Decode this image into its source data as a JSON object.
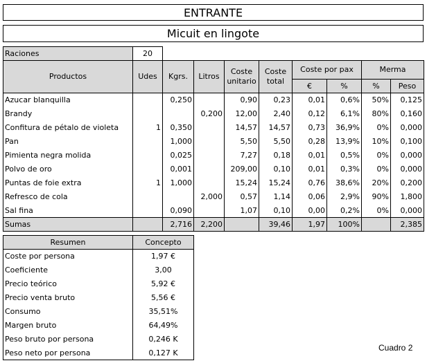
{
  "title": "ENTRANTE",
  "dish": "Micuit en lingote",
  "raciones": {
    "label": "Raciones",
    "value": "20"
  },
  "headers": {
    "productos": "Productos",
    "udes": "Udes",
    "kgrs": "Kgrs.",
    "litros": "Litros",
    "coste_unitario": [
      "Coste",
      "unitario"
    ],
    "coste_total": [
      "Coste",
      "total"
    ],
    "coste_por_pax": "Coste por pax",
    "merma": "Merma",
    "euro": "€",
    "pct": "%",
    "merma_pct": "%",
    "peso": "Peso"
  },
  "rows": [
    {
      "producto": "Azucar blanquilla",
      "udes": "",
      "kgrs": "0,250",
      "litros": "",
      "coste_unitario": "0,90",
      "coste_total": "0,23",
      "pax_euro": "0,01",
      "pax_pct": "0,6%",
      "merma_pct": "50%",
      "peso": "0,125"
    },
    {
      "producto": "Brandy",
      "udes": "",
      "kgrs": "",
      "litros": "0,200",
      "coste_unitario": "12,00",
      "coste_total": "2,40",
      "pax_euro": "0,12",
      "pax_pct": "6,1%",
      "merma_pct": "80%",
      "peso": "0,160"
    },
    {
      "producto": "Confitura de pétalo de violeta",
      "udes": "1",
      "kgrs": "0,350",
      "litros": "",
      "coste_unitario": "14,57",
      "coste_total": "14,57",
      "pax_euro": "0,73",
      "pax_pct": "36,9%",
      "merma_pct": "0%",
      "peso": "0,000"
    },
    {
      "producto": "Pan",
      "udes": "",
      "kgrs": "1,000",
      "litros": "",
      "coste_unitario": "5,50",
      "coste_total": "5,50",
      "pax_euro": "0,28",
      "pax_pct": "13,9%",
      "merma_pct": "10%",
      "peso": "0,100"
    },
    {
      "producto": "Pimienta negra molida",
      "udes": "",
      "kgrs": "0,025",
      "litros": "",
      "coste_unitario": "7,27",
      "coste_total": "0,18",
      "pax_euro": "0,01",
      "pax_pct": "0,5%",
      "merma_pct": "0%",
      "peso": "0,000"
    },
    {
      "producto": "Polvo de oro",
      "udes": "",
      "kgrs": "0,001",
      "litros": "",
      "coste_unitario": "209,00",
      "coste_total": "0,10",
      "pax_euro": "0,01",
      "pax_pct": "0,3%",
      "merma_pct": "0%",
      "peso": "0,000"
    },
    {
      "producto": "Puntas de foie extra",
      "udes": "1",
      "kgrs": "1,000",
      "litros": "",
      "coste_unitario": "15,24",
      "coste_total": "15,24",
      "pax_euro": "0,76",
      "pax_pct": "38,6%",
      "merma_pct": "20%",
      "peso": "0,200"
    },
    {
      "producto": "Refresco de cola",
      "udes": "",
      "kgrs": "",
      "litros": "2,000",
      "coste_unitario": "0,57",
      "coste_total": "1,14",
      "pax_euro": "0,06",
      "pax_pct": "2,9%",
      "merma_pct": "90%",
      "peso": "1,800"
    },
    {
      "producto": "Sal fina",
      "udes": "",
      "kgrs": "0,090",
      "litros": "",
      "coste_unitario": "1,07",
      "coste_total": "0,10",
      "pax_euro": "0,00",
      "pax_pct": "0,2%",
      "merma_pct": "0%",
      "peso": "0,000"
    }
  ],
  "sumas": {
    "label": "Sumas",
    "udes": "",
    "kgrs": "2,716",
    "litros": "2,200",
    "coste_unitario": "",
    "coste_total": "39,46",
    "pax_euro": "1,97",
    "pax_pct": "100%",
    "merma_pct": "",
    "peso": "2,385"
  },
  "resumen": {
    "header_left": "Resumen",
    "header_right": "Concepto",
    "rows": [
      {
        "label": "Coste por persona",
        "value": "1,97 €"
      },
      {
        "label": "Coeficiente",
        "value": "3,00"
      },
      {
        "label": "Precio teórico",
        "value": "5,92 €"
      },
      {
        "label": "Precio venta bruto",
        "value": "5,56 €"
      },
      {
        "label": "Consumo",
        "value": "35,51%"
      },
      {
        "label": "Margen bruto",
        "value": "64,49%"
      },
      {
        "label": "Peso bruto por persona",
        "value": "0,246 K"
      },
      {
        "label": "Peso neto por persona",
        "value": "0,127 K"
      }
    ]
  },
  "footer": "Cuadro 2"
}
